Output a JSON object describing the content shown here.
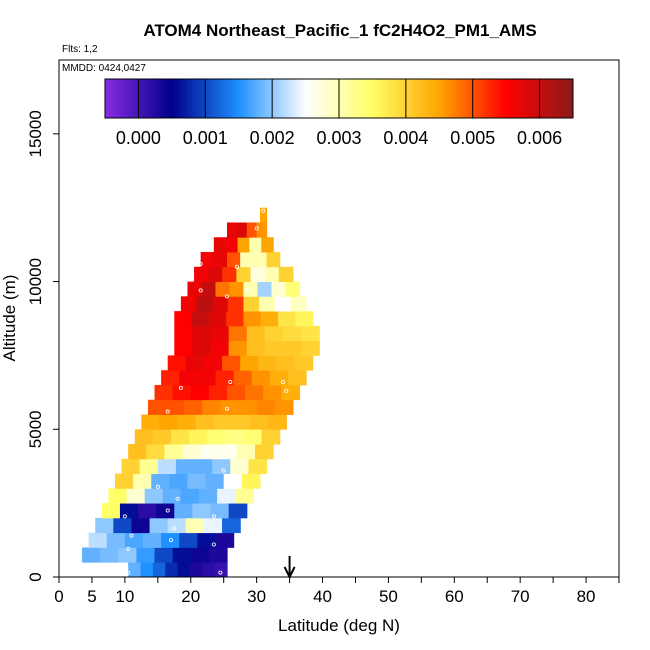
{
  "chart_data": {
    "type": "heatmap",
    "title": "ATOM4 Northeast_Pacific_1 fC2H4O2_PM1_AMS",
    "flights_label": "Flts: 1,2",
    "date_label": "MMDD: 0424,0427",
    "xlabel": "Latitude (deg N)",
    "ylabel": "Altitude (m)",
    "xlim": [
      0,
      85
    ],
    "ylim": [
      0,
      17500
    ],
    "x_ticks": [
      0,
      5,
      10,
      20,
      30,
      40,
      50,
      60,
      70,
      80
    ],
    "x_tick_labels": [
      "0",
      "5",
      "10",
      "20",
      "30",
      "40",
      "50",
      "60",
      "70",
      "80"
    ],
    "y_ticks": [
      0,
      5000,
      10000,
      15000
    ],
    "y_tick_labels": [
      "0",
      "5000",
      "10000",
      "15000"
    ],
    "colorbar": {
      "ticks": [
        0.0,
        0.001,
        0.002,
        0.003,
        0.004,
        0.005,
        0.006
      ],
      "tick_labels": [
        "0.000",
        "0.001",
        "0.002",
        "0.003",
        "0.004",
        "0.005",
        "0.006"
      ],
      "range": [
        -0.0005,
        0.0065
      ],
      "colors": [
        "#8a2be2",
        "#00008b",
        "#1e90ff",
        "#ffffff",
        "#ffff66",
        "#ffa500",
        "#ff0000",
        "#8b1a1a"
      ]
    },
    "marker_latitude": 35,
    "layers": [
      {
        "alt_bottom": 0,
        "alt_top": 500,
        "lat_start": 10.5,
        "lat_end": 25.5,
        "values": [
          0.0018,
          0.0015,
          0.0012,
          0.0008,
          0.0006,
          0.0003,
          0.0002,
          0.0001
        ]
      },
      {
        "alt_bottom": 500,
        "alt_top": 1000,
        "lat_start": 3.5,
        "lat_end": 25.5,
        "values": [
          0.0018,
          0.0019,
          0.002,
          0.0016,
          0.001,
          0.0006,
          0.0004,
          0.0003
        ]
      },
      {
        "alt_bottom": 1000,
        "alt_top": 1500,
        "lat_start": 4.5,
        "lat_end": 26.5,
        "values": [
          0.0022,
          0.0019,
          0.0017,
          0.0018,
          0.0015,
          0.001,
          0.0006,
          0.0003
        ]
      },
      {
        "alt_bottom": 1500,
        "alt_top": 2000,
        "lat_start": 5.5,
        "lat_end": 27.5,
        "values": [
          0.002,
          0.001,
          0.0004,
          0.002,
          0.0022,
          0.003,
          0.0024,
          0.0012
        ]
      },
      {
        "alt_bottom": 2000,
        "alt_top": 2500,
        "lat_start": 6.5,
        "lat_end": 28.5,
        "values": [
          0.0035,
          0.0006,
          0.0002,
          0.0004,
          0.0018,
          0.002,
          0.0019,
          0.001
        ]
      },
      {
        "alt_bottom": 2500,
        "alt_top": 3000,
        "lat_start": 7.5,
        "lat_end": 29.5,
        "values": [
          0.0035,
          0.0028,
          0.002,
          0.0018,
          0.0017,
          0.0018,
          0.0024,
          0.0032
        ]
      },
      {
        "alt_bottom": 3000,
        "alt_top": 3500,
        "lat_start": 8.5,
        "lat_end": 30.5,
        "values": [
          0.004,
          0.003,
          0.0018,
          0.0017,
          0.0019,
          0.0018,
          0.0025,
          0.0036
        ]
      },
      {
        "alt_bottom": 3500,
        "alt_top": 4000,
        "lat_start": 9.5,
        "lat_end": 31.5,
        "values": [
          0.004,
          0.0032,
          0.0022,
          0.0018,
          0.0018,
          0.002,
          0.0028,
          0.0038
        ]
      },
      {
        "alt_bottom": 4000,
        "alt_top": 4500,
        "lat_start": 10.5,
        "lat_end": 32.5,
        "values": [
          0.0042,
          0.0039,
          0.0032,
          0.0028,
          0.0026,
          0.0026,
          0.003,
          0.004
        ]
      },
      {
        "alt_bottom": 4500,
        "alt_top": 5000,
        "lat_start": 11.5,
        "lat_end": 33.5,
        "values": [
          0.0042,
          0.0041,
          0.0038,
          0.0036,
          0.0034,
          0.0033,
          0.0034,
          0.004
        ]
      },
      {
        "alt_bottom": 5000,
        "alt_top": 5500,
        "lat_start": 12.5,
        "lat_end": 34.5,
        "values": [
          0.0044,
          0.0045,
          0.0044,
          0.0042,
          0.0041,
          0.0041,
          0.0042,
          0.0043
        ]
      },
      {
        "alt_bottom": 5500,
        "alt_top": 6000,
        "lat_start": 13.5,
        "lat_end": 35.5,
        "values": [
          0.005,
          0.005,
          0.0049,
          0.0047,
          0.0046,
          0.0046,
          0.0047,
          0.0046
        ]
      },
      {
        "alt_bottom": 6000,
        "alt_top": 6500,
        "lat_start": 14.5,
        "lat_end": 36.5,
        "values": [
          0.0052,
          0.0054,
          0.0055,
          0.0053,
          0.005,
          0.0048,
          0.0046,
          0.0044
        ]
      },
      {
        "alt_bottom": 6500,
        "alt_top": 7000,
        "lat_start": 15.5,
        "lat_end": 37.5,
        "values": [
          0.0053,
          0.0056,
          0.0056,
          0.0053,
          0.0049,
          0.0046,
          0.0044,
          0.0042
        ]
      },
      {
        "alt_bottom": 7000,
        "alt_top": 7500,
        "lat_start": 16.5,
        "lat_end": 38.5,
        "values": [
          0.0054,
          0.0057,
          0.0056,
          0.005,
          0.0045,
          0.0043,
          0.0042,
          0.0041
        ]
      },
      {
        "alt_bottom": 7500,
        "alt_top": 8000,
        "lat_start": 17.5,
        "lat_end": 39.5,
        "values": [
          0.0055,
          0.0058,
          0.0056,
          0.0046,
          0.0042,
          0.0041,
          0.0041,
          0.004
        ]
      },
      {
        "alt_bottom": 8000,
        "alt_top": 8500,
        "lat_start": 17.5,
        "lat_end": 39.5,
        "values": [
          0.0055,
          0.0058,
          0.0057,
          0.0048,
          0.0042,
          0.004,
          0.0039,
          0.0038
        ]
      },
      {
        "alt_bottom": 8500,
        "alt_top": 9000,
        "lat_start": 17.5,
        "lat_end": 38.5,
        "values": [
          0.0055,
          0.006,
          0.0058,
          0.0052,
          0.0046,
          0.0044,
          0.0038,
          0.0036
        ]
      },
      {
        "alt_bottom": 9000,
        "alt_top": 9500,
        "lat_start": 18.5,
        "lat_end": 37.5,
        "values": [
          0.0056,
          0.0061,
          0.0058,
          0.0052,
          0.004,
          0.003,
          0.0025,
          0.0029
        ]
      },
      {
        "alt_bottom": 9500,
        "alt_top": 10000,
        "lat_start": 19.5,
        "lat_end": 36.5,
        "values": [
          0.0057,
          0.006,
          0.0048,
          0.0046,
          0.003,
          0.0021,
          0.0028,
          0.0034
        ]
      },
      {
        "alt_bottom": 10000,
        "alt_top": 10500,
        "lat_start": 20.5,
        "lat_end": 35.5,
        "values": [
          0.0056,
          0.0058,
          0.0052,
          0.004,
          0.0027,
          0.003,
          0.004
        ]
      },
      {
        "alt_bottom": 10500,
        "alt_top": 11000,
        "lat_start": 21.5,
        "lat_end": 33.5,
        "values": [
          0.0056,
          0.0057,
          0.005,
          0.003,
          0.003,
          0.004
        ]
      },
      {
        "alt_bottom": 11000,
        "alt_top": 11500,
        "lat_start": 23.5,
        "lat_end": 32.5,
        "values": [
          0.0057,
          0.0056,
          0.0045,
          0.003,
          0.0045
        ]
      },
      {
        "alt_bottom": 11500,
        "alt_top": 12000,
        "lat_start": 25.5,
        "lat_end": 31.5,
        "values": [
          0.0057,
          0.0058,
          0.005,
          0.0046
        ]
      },
      {
        "alt_bottom": 12000,
        "alt_top": 12500,
        "lat_start": 30.5,
        "lat_end": 31.5,
        "values": [
          0.0045
        ]
      }
    ],
    "sample_points": [
      {
        "lat": 10.5,
        "alt": 150
      },
      {
        "lat": 24.5,
        "alt": 150
      },
      {
        "lat": 10.5,
        "alt": 950
      },
      {
        "lat": 23.5,
        "alt": 1100
      },
      {
        "lat": 17,
        "alt": 1250
      },
      {
        "lat": 11,
        "alt": 1400
      },
      {
        "lat": 17.5,
        "alt": 1650
      },
      {
        "lat": 10,
        "alt": 2050
      },
      {
        "lat": 23.5,
        "alt": 2050
      },
      {
        "lat": 16.5,
        "alt": 2250
      },
      {
        "lat": 18,
        "alt": 2650
      },
      {
        "lat": 15,
        "alt": 3050
      },
      {
        "lat": 25,
        "alt": 3600
      },
      {
        "lat": 16.5,
        "alt": 5600
      },
      {
        "lat": 18.5,
        "alt": 6400
      },
      {
        "lat": 25.5,
        "alt": 5700
      },
      {
        "lat": 26,
        "alt": 6600
      },
      {
        "lat": 34,
        "alt": 6600
      },
      {
        "lat": 34.5,
        "alt": 6300
      },
      {
        "lat": 21.5,
        "alt": 9700
      },
      {
        "lat": 25.5,
        "alt": 9500
      },
      {
        "lat": 28.5,
        "alt": 9700
      },
      {
        "lat": 21.5,
        "alt": 10600
      },
      {
        "lat": 27,
        "alt": 10500
      },
      {
        "lat": 30,
        "alt": 11800
      },
      {
        "lat": 31,
        "alt": 12400
      }
    ]
  }
}
